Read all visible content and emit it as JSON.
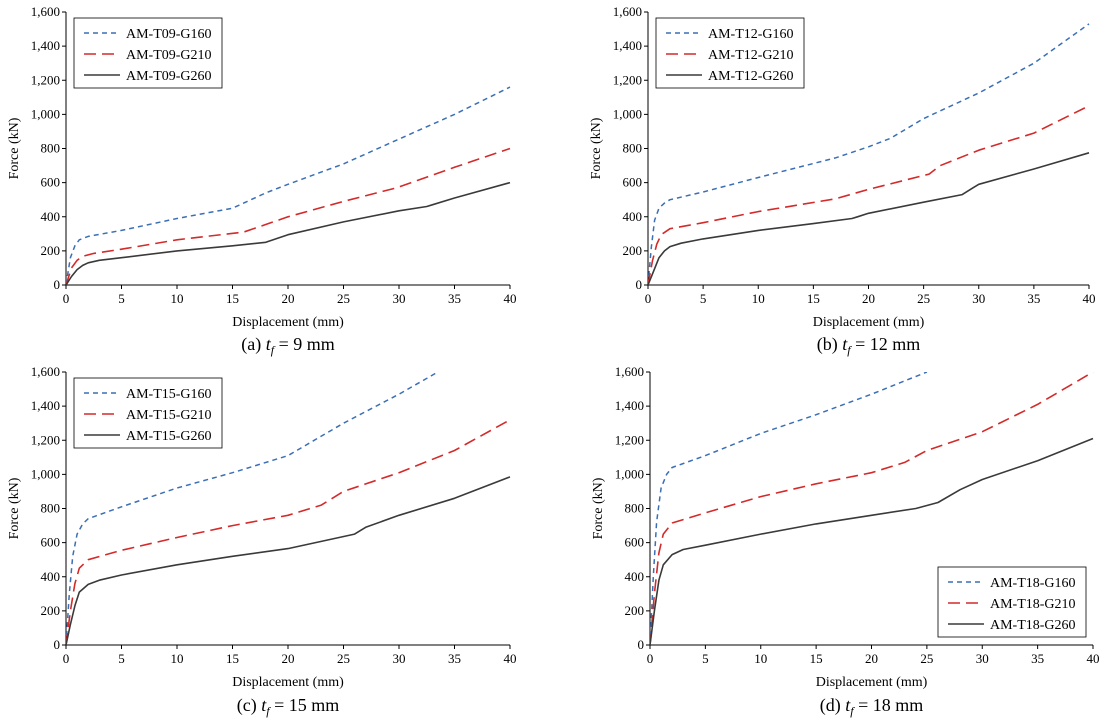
{
  "chart_data": [
    {
      "type": "line",
      "caption_prefix": "(a) ",
      "caption_var": "t",
      "caption_sub": "f",
      "caption_suffix": " = 9 mm",
      "xlabel": "Displacement (mm)",
      "ylabel": "Force (kN)",
      "xlim": [
        0,
        40
      ],
      "ylim": [
        0,
        1600
      ],
      "xticks": [
        0,
        5,
        10,
        15,
        20,
        25,
        30,
        35,
        40
      ],
      "yticks": [
        0,
        200,
        400,
        600,
        800,
        1000,
        1200,
        1400,
        1600
      ],
      "ytick_labels": [
        "0",
        "200",
        "400",
        "600",
        "800",
        "1,000",
        "1,200",
        "1,400",
        "1,600"
      ],
      "legend_position": "top-left",
      "series": [
        {
          "name": "AM-T09-G160",
          "style": "blue-dash",
          "x": [
            0,
            0.4,
            0.8,
            1.2,
            2,
            5,
            10,
            15,
            18,
            20,
            25,
            30,
            35,
            40
          ],
          "y": [
            0,
            160,
            230,
            265,
            285,
            320,
            390,
            450,
            540,
            590,
            710,
            855,
            1000,
            1160
          ]
        },
        {
          "name": "AM-T09-G210",
          "style": "red-longdash",
          "x": [
            0,
            0.5,
            1,
            1.5,
            2.5,
            5,
            10,
            16,
            20,
            25,
            29.5,
            30,
            35,
            40
          ],
          "y": [
            0,
            100,
            145,
            168,
            185,
            210,
            265,
            310,
            400,
            490,
            565,
            575,
            690,
            800
          ]
        },
        {
          "name": "AM-T09-G260",
          "style": "gray-solid",
          "x": [
            0,
            0.5,
            1,
            1.5,
            2,
            3,
            5,
            10,
            15,
            18,
            20,
            25,
            30,
            32.5,
            33,
            35,
            40
          ],
          "y": [
            0,
            50,
            90,
            115,
            130,
            145,
            160,
            200,
            230,
            250,
            295,
            370,
            435,
            460,
            470,
            510,
            600
          ]
        }
      ]
    },
    {
      "type": "line",
      "caption_prefix": "(b) ",
      "caption_var": "t",
      "caption_sub": "f",
      "caption_suffix": " = 12 mm",
      "xlabel": "Displacement (mm)",
      "ylabel": "Force (kN)",
      "xlim": [
        0,
        40
      ],
      "ylim": [
        0,
        1600
      ],
      "xticks": [
        0,
        5,
        10,
        15,
        20,
        25,
        30,
        35,
        40
      ],
      "yticks": [
        0,
        200,
        400,
        600,
        800,
        1000,
        1200,
        1400,
        1600
      ],
      "ytick_labels": [
        "0",
        "200",
        "400",
        "600",
        "800",
        "1,000",
        "1,200",
        "1,400",
        "1,600"
      ],
      "legend_position": "top-left",
      "series": [
        {
          "name": "AM-T12-G160",
          "style": "blue-dash",
          "x": [
            0,
            0.3,
            0.6,
            1,
            1.5,
            2,
            5,
            10,
            17,
            20,
            22,
            25,
            30,
            35,
            40
          ],
          "y": [
            0,
            220,
            380,
            450,
            480,
            500,
            545,
            630,
            745,
            810,
            860,
            975,
            1125,
            1300,
            1530
          ]
        },
        {
          "name": "AM-T12-G210",
          "style": "red-longdash",
          "x": [
            0,
            0.4,
            0.8,
            1.2,
            2,
            5,
            10,
            17,
            20,
            25.5,
            26.5,
            30,
            35,
            40
          ],
          "y": [
            0,
            140,
            240,
            295,
            330,
            365,
            430,
            505,
            560,
            650,
            700,
            790,
            890,
            1050
          ]
        },
        {
          "name": "AM-T12-G260",
          "style": "gray-solid",
          "x": [
            0,
            0.5,
            1,
            1.5,
            2,
            3,
            5,
            10,
            15,
            18.5,
            19,
            20,
            25,
            28.5,
            29.5,
            30,
            35,
            40
          ],
          "y": [
            0,
            80,
            160,
            200,
            225,
            245,
            270,
            320,
            360,
            390,
            400,
            420,
            485,
            530,
            570,
            590,
            680,
            775
          ]
        }
      ]
    },
    {
      "type": "line",
      "caption_prefix": "(c) ",
      "caption_var": "t",
      "caption_sub": "f",
      "caption_suffix": " = 15 mm",
      "xlabel": "Displacement (mm)",
      "ylabel": "Force (kN)",
      "xlim": [
        0,
        40
      ],
      "ylim": [
        0,
        1600
      ],
      "xticks": [
        0,
        5,
        10,
        15,
        20,
        25,
        30,
        35,
        40
      ],
      "yticks": [
        0,
        200,
        400,
        600,
        800,
        1000,
        1200,
        1400,
        1600
      ],
      "ytick_labels": [
        "0",
        "200",
        "400",
        "600",
        "800",
        "1,000",
        "1,200",
        "1,400",
        "1,600"
      ],
      "legend_position": "top-left",
      "series": [
        {
          "name": "AM-T15-G160",
          "style": "blue-dash",
          "x": [
            0,
            0.3,
            0.6,
            1,
            1.5,
            2,
            5,
            10,
            15,
            20,
            25,
            30,
            33.5
          ],
          "y": [
            0,
            300,
            520,
            650,
            710,
            740,
            810,
            920,
            1010,
            1110,
            1300,
            1470,
            1600
          ]
        },
        {
          "name": "AM-T15-G210",
          "style": "red-longdash",
          "x": [
            0,
            0.4,
            0.8,
            1.2,
            2,
            5,
            10,
            15,
            20,
            23,
            25,
            30,
            35,
            40
          ],
          "y": [
            0,
            200,
            360,
            450,
            500,
            555,
            630,
            700,
            760,
            820,
            900,
            1010,
            1140,
            1320
          ]
        },
        {
          "name": "AM-T15-G260",
          "style": "gray-solid",
          "x": [
            0,
            0.4,
            0.8,
            1.2,
            2,
            3,
            5,
            10,
            15,
            20,
            26,
            27,
            30,
            35,
            40
          ],
          "y": [
            0,
            120,
            230,
            310,
            355,
            380,
            410,
            470,
            520,
            565,
            650,
            690,
            760,
            860,
            985
          ]
        }
      ]
    },
    {
      "type": "line",
      "caption_prefix": "(d) ",
      "caption_var": "t",
      "caption_sub": "f",
      "caption_suffix": " = 18 mm",
      "xlabel": "Displacement (mm)",
      "ylabel": "Force (kN)",
      "xlim": [
        0,
        40
      ],
      "ylim": [
        0,
        1600
      ],
      "xticks": [
        0,
        5,
        10,
        15,
        20,
        25,
        30,
        35,
        40
      ],
      "yticks": [
        0,
        200,
        400,
        600,
        800,
        1000,
        1200,
        1400,
        1600
      ],
      "ytick_labels": [
        "0",
        "200",
        "400",
        "600",
        "800",
        "1,000",
        "1,200",
        "1,400",
        "1,600"
      ],
      "legend_position": "bottom-right",
      "series": [
        {
          "name": "AM-T18-G160",
          "style": "blue-dash",
          "x": [
            0,
            0.3,
            0.6,
            1,
            1.5,
            2,
            5,
            10,
            15,
            20,
            25
          ],
          "y": [
            0,
            400,
            720,
            920,
            1000,
            1040,
            1110,
            1240,
            1350,
            1470,
            1600
          ]
        },
        {
          "name": "AM-T18-G210",
          "style": "red-longdash",
          "x": [
            0,
            0.4,
            0.8,
            1.2,
            2,
            5,
            10,
            15,
            20,
            23,
            25,
            30,
            35,
            40
          ],
          "y": [
            0,
            300,
            540,
            650,
            715,
            775,
            870,
            945,
            1010,
            1070,
            1140,
            1250,
            1410,
            1600
          ]
        },
        {
          "name": "AM-T18-G260",
          "style": "gray-solid",
          "x": [
            0,
            0.4,
            0.8,
            1.2,
            2,
            3,
            5,
            10,
            15,
            20,
            24,
            26,
            28,
            30,
            35,
            40
          ],
          "y": [
            0,
            200,
            380,
            470,
            530,
            560,
            585,
            650,
            710,
            760,
            800,
            835,
            910,
            970,
            1080,
            1210
          ]
        }
      ]
    }
  ],
  "styles": {
    "blue-dash": {
      "color": "#3b6fb5",
      "dash": "5,4",
      "width": 1.5
    },
    "red-longdash": {
      "color": "#d42a2a",
      "dash": "12,6",
      "width": 1.6
    },
    "gray-solid": {
      "color": "#3a3a3a",
      "dash": "",
      "width": 1.6
    }
  }
}
